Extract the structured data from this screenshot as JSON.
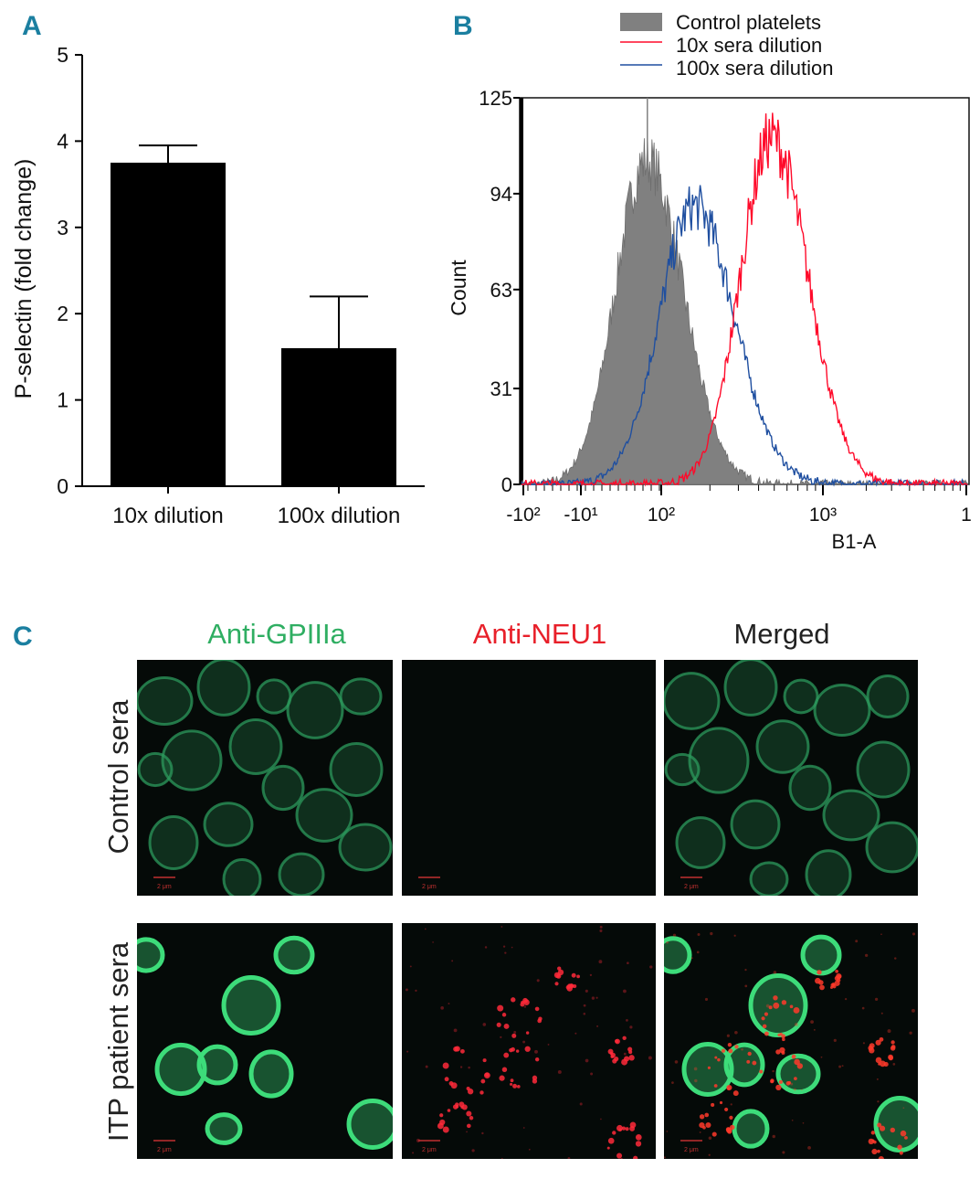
{
  "panels": {
    "a": "A",
    "b": "B",
    "c": "C"
  },
  "chart_data": [
    {
      "type": "bar",
      "categories": [
        "10x dilution",
        "100x dilution"
      ],
      "values": [
        3.75,
        1.6
      ],
      "errors": [
        0.2,
        0.6
      ],
      "ylabel": "P-selectin (fold change)",
      "ylim": [
        0,
        5
      ],
      "yticks": [
        0,
        1,
        2,
        3,
        4,
        5
      ],
      "bar_color": "#000000"
    },
    {
      "type": "area",
      "xlabel": "B1-A",
      "ylabel": "Count",
      "ylim": [
        0,
        125
      ],
      "yticks": [
        "0",
        "31",
        "63",
        "94",
        "125"
      ],
      "xticks": [
        "-10²",
        "-10¹",
        "10²",
        "10³",
        "1"
      ],
      "legend_position": "top",
      "series": [
        {
          "name": "Control platelets",
          "color": "#808080",
          "peak_x": 60,
          "peak_count": 105
        },
        {
          "name": "10x sera dilution",
          "color": "#ff0a2a",
          "peak_x": 480,
          "peak_count": 112
        },
        {
          "name": "100x sera dilution",
          "color": "#1f4fa0",
          "peak_x": 160,
          "peak_count": 90
        }
      ]
    }
  ],
  "panel_c": {
    "columns": [
      "Anti-GPIIIa",
      "Anti-NEU1",
      "Merged"
    ],
    "rows": [
      "Control sera",
      "ITP patient sera"
    ],
    "column_colors": [
      "#2fae62",
      "#e8202a",
      "#222222"
    ],
    "scale_bar": "2 μm"
  }
}
